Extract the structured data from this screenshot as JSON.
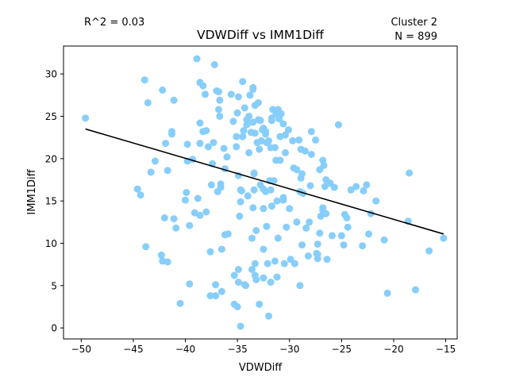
{
  "chart_data": {
    "type": "scatter",
    "title": "VDWDiff vs IMM1Diff",
    "xlabel": "VDWDiff",
    "ylabel": "IMM1Diff",
    "xlim": [
      -51.7,
      -13.9
    ],
    "ylim": [
      -1.3,
      33.3
    ],
    "x_ticks": [
      -50,
      -45,
      -40,
      -35,
      -30,
      -25,
      -20,
      -15
    ],
    "y_ticks": [
      0,
      5,
      10,
      15,
      20,
      25,
      30
    ],
    "x_tick_labels": [
      "−50",
      "−45",
      "−40",
      "−35",
      "−30",
      "−25",
      "−20",
      "−15"
    ],
    "y_tick_labels": [
      "0",
      "5",
      "10",
      "15",
      "20",
      "25",
      "30"
    ],
    "annotations": {
      "r2": "R^2 = 0.03",
      "cluster": "Cluster 2",
      "n": "N = 899"
    },
    "point_color": "#87cefa",
    "line_color": "#000000",
    "trend_line": {
      "x": [
        -49.6,
        -15.2
      ],
      "y": [
        23.5,
        11.1
      ]
    },
    "points": [
      [
        -49.6,
        24.8
      ],
      [
        -44.6,
        16.4
      ],
      [
        -44.3,
        15.7
      ],
      [
        -43.9,
        29.3
      ],
      [
        -43.6,
        26.6
      ],
      [
        -43.3,
        18.4
      ],
      [
        -42.9,
        19.7
      ],
      [
        -43.8,
        9.6
      ],
      [
        -42.3,
        8.6
      ],
      [
        -42.2,
        7.9
      ],
      [
        -42.2,
        28.1
      ],
      [
        -41.7,
        7.8
      ],
      [
        -42.0,
        13.0
      ],
      [
        -41.9,
        21.8
      ],
      [
        -41.7,
        18.6
      ],
      [
        -41.3,
        23.2
      ],
      [
        -41.3,
        22.9
      ],
      [
        -41.1,
        26.9
      ],
      [
        -41.1,
        12.9
      ],
      [
        -40.9,
        11.8
      ],
      [
        -40.5,
        2.9
      ],
      [
        -40.0,
        15.1
      ],
      [
        -39.9,
        16.0
      ],
      [
        -39.8,
        19.7
      ],
      [
        -39.8,
        21.7
      ],
      [
        -39.6,
        12.1
      ],
      [
        -39.6,
        5.2
      ],
      [
        -39.3,
        19.9
      ],
      [
        -39.1,
        13.6
      ],
      [
        -38.9,
        31.8
      ],
      [
        -38.8,
        15.3
      ],
      [
        -38.6,
        13.3
      ],
      [
        -38.6,
        21.8
      ],
      [
        -38.6,
        24.2
      ],
      [
        -38.6,
        29.0
      ],
      [
        -38.3,
        28.6
      ],
      [
        -38.3,
        23.2
      ],
      [
        -38.1,
        27.6
      ],
      [
        -38.0,
        13.7
      ],
      [
        -38.0,
        23.3
      ],
      [
        -37.8,
        21.4
      ],
      [
        -37.6,
        9.0
      ],
      [
        -37.6,
        3.8
      ],
      [
        -37.5,
        16.9
      ],
      [
        -37.4,
        19.4
      ],
      [
        -37.3,
        21.9
      ],
      [
        -37.2,
        31.1
      ],
      [
        -37.1,
        5.1
      ],
      [
        -37.1,
        3.8
      ],
      [
        -37.0,
        28.0
      ],
      [
        -36.9,
        16.1
      ],
      [
        -36.8,
        27.9
      ],
      [
        -36.8,
        25.8
      ],
      [
        -36.7,
        26.9
      ],
      [
        -36.7,
        25.0
      ],
      [
        -36.6,
        16.6
      ],
      [
        -36.6,
        17.0
      ],
      [
        -36.5,
        4.3
      ],
      [
        -36.5,
        9.3
      ],
      [
        -36.3,
        21.2
      ],
      [
        -36.2,
        11.0
      ],
      [
        -36.2,
        18.8
      ],
      [
        -36.0,
        20.2
      ],
      [
        -35.9,
        11.1
      ],
      [
        -35.6,
        27.6
      ],
      [
        -35.4,
        24.4
      ],
      [
        -35.3,
        6.2
      ],
      [
        -35.3,
        2.8
      ],
      [
        -35.1,
        22.6
      ],
      [
        -35.1,
        21.4
      ],
      [
        -35.0,
        25.4
      ],
      [
        -35.0,
        2.5
      ],
      [
        -34.9,
        18.0
      ],
      [
        -34.9,
        6.9
      ],
      [
        -34.9,
        5.4
      ],
      [
        -34.9,
        27.3
      ],
      [
        -34.8,
        13.2
      ],
      [
        -34.7,
        0.2
      ],
      [
        -34.7,
        14.9
      ],
      [
        -34.7,
        16.3
      ],
      [
        -34.6,
        16.2
      ],
      [
        -34.5,
        29.1
      ],
      [
        -34.5,
        22.6
      ],
      [
        -34.4,
        23.3
      ],
      [
        -34.3,
        5.1
      ],
      [
        -34.2,
        5.0
      ],
      [
        -34.3,
        26.0
      ],
      [
        -34.1,
        24.6
      ],
      [
        -34.1,
        24.0
      ],
      [
        -34.0,
        15.6
      ],
      [
        -33.9,
        25.0
      ],
      [
        -33.9,
        20.7
      ],
      [
        -33.8,
        27.5
      ],
      [
        -33.7,
        23.1
      ],
      [
        -33.6,
        10.6
      ],
      [
        -33.6,
        6.9
      ],
      [
        -33.5,
        28.4
      ],
      [
        -33.5,
        28.2
      ],
      [
        -33.5,
        24.3
      ],
      [
        -33.5,
        14.2
      ],
      [
        -33.4,
        16.3
      ],
      [
        -33.4,
        18.3
      ],
      [
        -33.4,
        18.2
      ],
      [
        -33.3,
        23.0
      ],
      [
        -33.3,
        6.2
      ],
      [
        -33.3,
        7.6
      ],
      [
        -33.3,
        26.3
      ],
      [
        -33.2,
        5.7
      ],
      [
        -33.2,
        11.5
      ],
      [
        -33.0,
        24.6
      ],
      [
        -33.1,
        21.9
      ],
      [
        -33.0,
        26.6
      ],
      [
        -32.9,
        21.1
      ],
      [
        -32.9,
        2.8
      ],
      [
        -32.8,
        16.9
      ],
      [
        -32.8,
        24.5
      ],
      [
        -32.7,
        22.1
      ],
      [
        -32.6,
        23.4
      ],
      [
        -32.5,
        9.3
      ],
      [
        -32.5,
        14.1
      ],
      [
        -32.5,
        23.6
      ],
      [
        -32.5,
        5.9
      ],
      [
        -32.5,
        16.4
      ],
      [
        -32.3,
        23.2
      ],
      [
        -32.3,
        22.9
      ],
      [
        -32.3,
        16.1
      ],
      [
        -32.2,
        21.9
      ],
      [
        -32.2,
        12.0
      ],
      [
        -32.1,
        7.6
      ],
      [
        -32.0,
        1.4
      ],
      [
        -32.0,
        22.1
      ],
      [
        -31.9,
        17.4
      ],
      [
        -31.8,
        16.3
      ],
      [
        -31.8,
        21.3
      ],
      [
        -31.7,
        14.4
      ],
      [
        -31.8,
        5.4
      ],
      [
        -31.7,
        24.5
      ],
      [
        -31.7,
        24.8
      ],
      [
        -31.6,
        25.8
      ],
      [
        -31.5,
        17.4
      ],
      [
        -31.4,
        7.9
      ],
      [
        -31.4,
        21.3
      ],
      [
        -31.3,
        19.8
      ],
      [
        -31.3,
        25.3
      ],
      [
        -31.2,
        6.0
      ],
      [
        -31.2,
        15.0
      ],
      [
        -31.1,
        10.6
      ],
      [
        -31.1,
        25.8
      ],
      [
        -31.0,
        24.7
      ],
      [
        -30.9,
        19.8
      ],
      [
        -30.9,
        22.6
      ],
      [
        -30.8,
        25.3
      ],
      [
        -30.6,
        15.4
      ],
      [
        -30.6,
        15.1
      ],
      [
        -30.6,
        24.1
      ],
      [
        -30.5,
        7.6
      ],
      [
        -30.4,
        22.8
      ],
      [
        -30.4,
        20.7
      ],
      [
        -30.3,
        11.9
      ],
      [
        -30.1,
        23.4
      ],
      [
        -30.0,
        14.1
      ],
      [
        -29.9,
        8.1
      ],
      [
        -29.7,
        22.1
      ],
      [
        -29.6,
        18.9
      ],
      [
        -29.5,
        7.6
      ],
      [
        -29.3,
        18.7
      ],
      [
        -29.3,
        12.5
      ],
      [
        -29.1,
        22.2
      ],
      [
        -29.0,
        5.0
      ],
      [
        -29.0,
        16.1
      ],
      [
        -28.9,
        17.7
      ],
      [
        -28.9,
        21.1
      ],
      [
        -28.8,
        9.8
      ],
      [
        -28.8,
        18.2
      ],
      [
        -28.7,
        15.9
      ],
      [
        -28.5,
        20.9
      ],
      [
        -28.4,
        11.8
      ],
      [
        -28.2,
        8.5
      ],
      [
        -28.1,
        12.5
      ],
      [
        -28.0,
        16.8
      ],
      [
        -27.9,
        23.2
      ],
      [
        -27.9,
        20.5
      ],
      [
        -27.5,
        22.2
      ],
      [
        -27.4,
        8.8
      ],
      [
        -27.3,
        8.2
      ],
      [
        -27.3,
        8.7
      ],
      [
        -27.3,
        9.9
      ],
      [
        -27.1,
        11.2
      ],
      [
        -27.1,
        18.7
      ],
      [
        -27.0,
        13.2
      ],
      [
        -26.8,
        13.9
      ],
      [
        -26.8,
        14.2
      ],
      [
        -26.8,
        19.8
      ],
      [
        -26.7,
        19.2
      ],
      [
        -26.6,
        16.7
      ],
      [
        -26.5,
        17.5
      ],
      [
        -26.4,
        8.1
      ],
      [
        -26.5,
        13.5
      ],
      [
        -26.1,
        17.1
      ],
      [
        -25.9,
        10.9
      ],
      [
        -25.7,
        16.6
      ],
      [
        -25.3,
        24.0
      ],
      [
        -25.0,
        10.9
      ],
      [
        -24.8,
        9.8
      ],
      [
        -24.7,
        13.4
      ],
      [
        -24.5,
        13.0
      ],
      [
        -24.4,
        11.9
      ],
      [
        -24.1,
        16.3
      ],
      [
        -23.6,
        16.7
      ],
      [
        -23.0,
        9.7
      ],
      [
        -22.9,
        16.2
      ],
      [
        -22.6,
        16.9
      ],
      [
        -22.2,
        13.5
      ],
      [
        -22.4,
        11.1
      ],
      [
        -21.7,
        15.0
      ],
      [
        -20.9,
        10.4
      ],
      [
        -20.6,
        4.1
      ],
      [
        -18.6,
        12.6
      ],
      [
        -18.5,
        18.3
      ],
      [
        -17.9,
        4.5
      ],
      [
        -16.6,
        9.1
      ],
      [
        -15.2,
        10.6
      ]
    ]
  }
}
